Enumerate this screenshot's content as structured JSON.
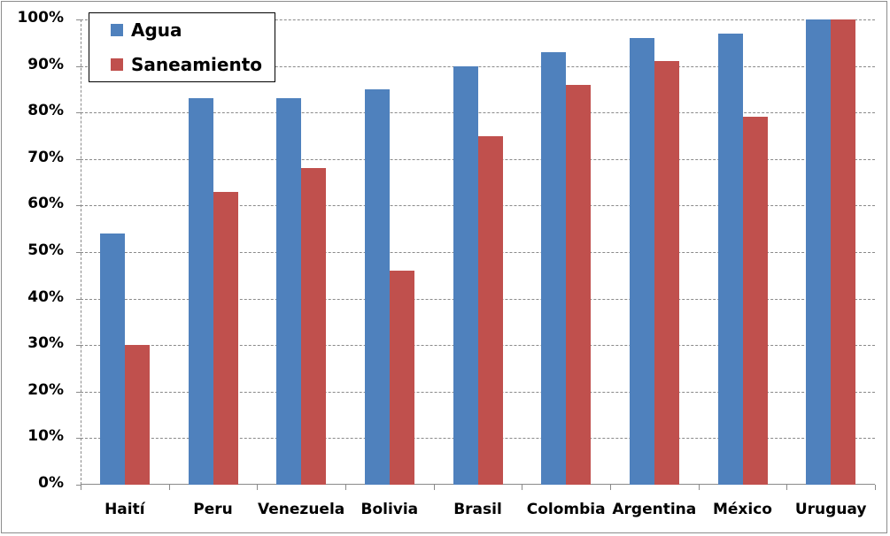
{
  "chart_data": {
    "type": "bar",
    "title": "",
    "xlabel": "",
    "ylabel": "",
    "categories": [
      "Haití",
      "Peru",
      "Venezuela",
      "Bolivia",
      "Brasil",
      "Colombia",
      "Argentina",
      "México",
      "Uruguay"
    ],
    "series": [
      {
        "name": "Agua",
        "color": "#4F81BD",
        "values": [
          54,
          83,
          83,
          85,
          90,
          93,
          96,
          97,
          100
        ]
      },
      {
        "name": "Saneamiento",
        "color": "#C0504D",
        "values": [
          30,
          63,
          68,
          46,
          75,
          86,
          91,
          79,
          100
        ]
      }
    ],
    "ylim": [
      0,
      100
    ],
    "yticks": [
      "0%",
      "10%",
      "20%",
      "30%",
      "40%",
      "50%",
      "60%",
      "70%",
      "80%",
      "90%",
      "100%"
    ],
    "grid": true,
    "legend_position": "top-left inside"
  },
  "legend": {
    "items": [
      {
        "label": "Agua",
        "color": "#4F81BD"
      },
      {
        "label": "Saneamiento",
        "color": "#C0504D"
      }
    ]
  }
}
